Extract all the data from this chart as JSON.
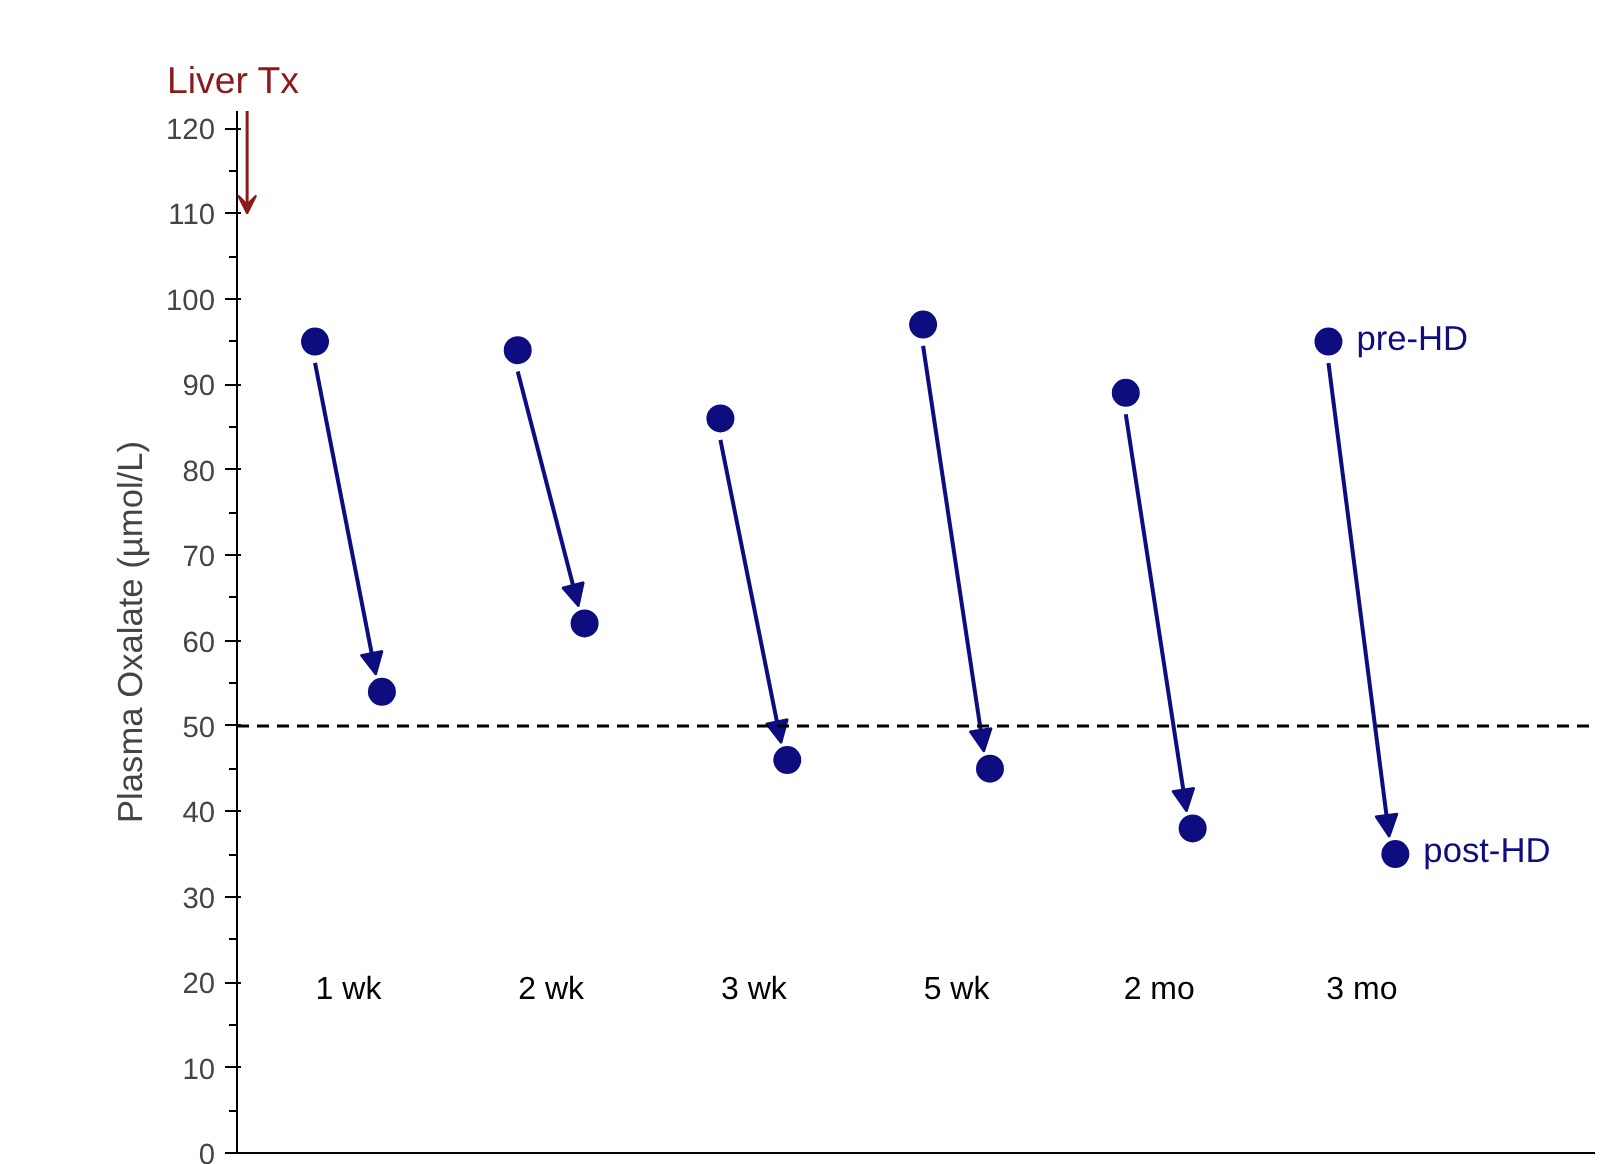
{
  "chart_data": {
    "type": "scatter",
    "categories": [
      "1 wk",
      "2 wk",
      "3 wk",
      "5 wk",
      "2 mo",
      "3 mo"
    ],
    "series": [
      {
        "name": "pre-HD",
        "color": "#0d0d80",
        "values": [
          95,
          94,
          86,
          97,
          89,
          95
        ]
      },
      {
        "name": "post-HD",
        "color": "#0d0d80",
        "values": [
          54,
          62,
          46,
          45,
          38,
          35
        ]
      }
    ],
    "ylabel": "Plasma Oxalate (µmol/L)",
    "ylim": [
      0,
      122
    ],
    "yticks": [
      0,
      10,
      20,
      30,
      40,
      50,
      60,
      70,
      80,
      90,
      100,
      110,
      120
    ],
    "ref_lines": [
      {
        "axis": "y",
        "value": 50,
        "line_style": "dashed",
        "color": "#000000"
      }
    ],
    "annotations": [
      "Liver Tx"
    ],
    "grid": false,
    "marker": "circle"
  }
}
